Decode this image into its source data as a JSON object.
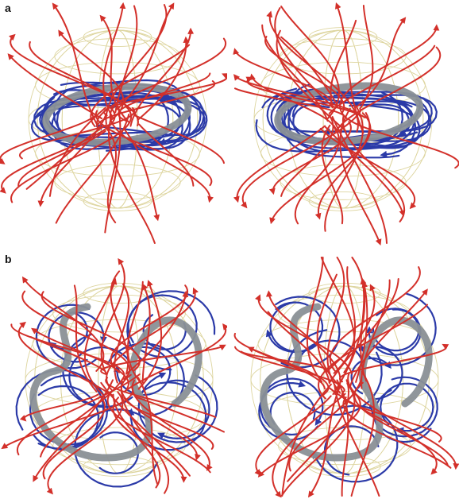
{
  "figure": {
    "panels": [
      {
        "id": "a",
        "label": "a",
        "topology": "ring",
        "views": [
          "left",
          "right"
        ]
      },
      {
        "id": "b",
        "label": "b",
        "topology": "twisted-loop",
        "views": [
          "left",
          "right"
        ]
      }
    ],
    "colors": {
      "sphere_grid": "#dcd39a",
      "outer_field_lines": "#d3302a",
      "inner_field_lines": "#2b3aa8",
      "core_tube": "#8a9096"
    }
  }
}
